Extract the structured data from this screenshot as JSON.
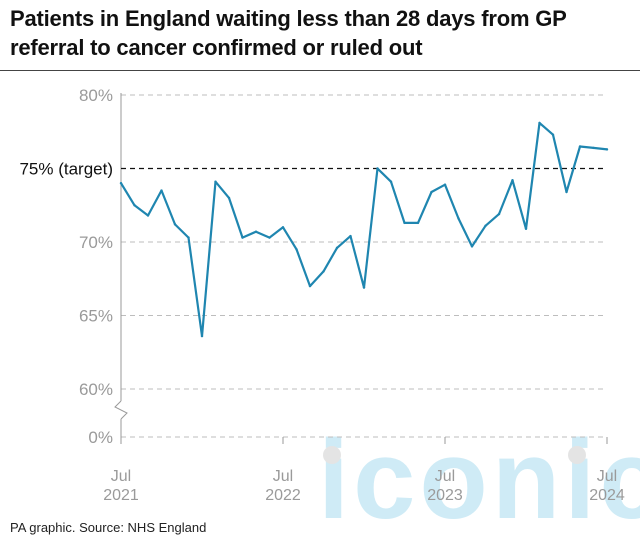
{
  "title": "Patients in England waiting less than 28 days from GP referral to cancer confirmed or ruled out",
  "source": "PA graphic. Source: NHS England",
  "watermark": "iconic",
  "colors": {
    "line": "#1f86b0",
    "grid": "#bdbdbd",
    "target": "#111111",
    "watermark": "#a8dcef"
  },
  "chart_data": {
    "type": "line",
    "title": "Patients in England waiting less than 28 days from GP referral to cancer confirmed or ruled out",
    "xlabel": "",
    "ylabel": "",
    "y_ticks": [
      "80%",
      "75% (target)",
      "70%",
      "65%",
      "60%",
      "0%"
    ],
    "y_tick_values": [
      80,
      75,
      70,
      65,
      60,
      0
    ],
    "ylim": [
      60,
      80
    ],
    "y_axis_break": true,
    "x_ticks": [
      {
        "month": "Jul",
        "year": "2021"
      },
      {
        "month": "Jul",
        "year": "2022"
      },
      {
        "month": "Jul",
        "year": "2023"
      },
      {
        "month": "Jul",
        "year": "2024"
      }
    ],
    "target": {
      "value": 75,
      "label": "75% (target)"
    },
    "grid": true,
    "series": [
      {
        "months": [
          "Jul 2021",
          "Aug 2021",
          "Sep 2021",
          "Oct 2021",
          "Nov 2021",
          "Dec 2021",
          "Jan 2022",
          "Feb 2022",
          "Mar 2022",
          "Apr 2022",
          "May 2022",
          "Jun 2022",
          "Jul 2022",
          "Aug 2022",
          "Sep 2022",
          "Oct 2022",
          "Nov 2022",
          "Dec 2022",
          "Jan 2023",
          "Feb 2023",
          "Mar 2023",
          "Apr 2023",
          "May 2023",
          "Jun 2023",
          "Jul 2023",
          "Aug 2023",
          "Sep 2023",
          "Oct 2023",
          "Nov 2023",
          "Dec 2023",
          "Jan 2024",
          "Feb 2024",
          "Mar 2024",
          "Apr 2024",
          "May 2024",
          "Jun 2024",
          "Jul 2024"
        ],
        "values": [
          74.0,
          72.5,
          71.8,
          73.5,
          71.2,
          70.3,
          63.6,
          74.1,
          73.0,
          70.3,
          70.7,
          70.3,
          71.0,
          69.5,
          67.0,
          68.0,
          69.6,
          70.4,
          66.9,
          75.0,
          74.1,
          71.3,
          71.3,
          73.4,
          73.9,
          71.6,
          69.7,
          71.1,
          71.9,
          74.2,
          70.9,
          78.1,
          77.3,
          73.4,
          76.5,
          76.4,
          76.3
        ]
      }
    ]
  }
}
